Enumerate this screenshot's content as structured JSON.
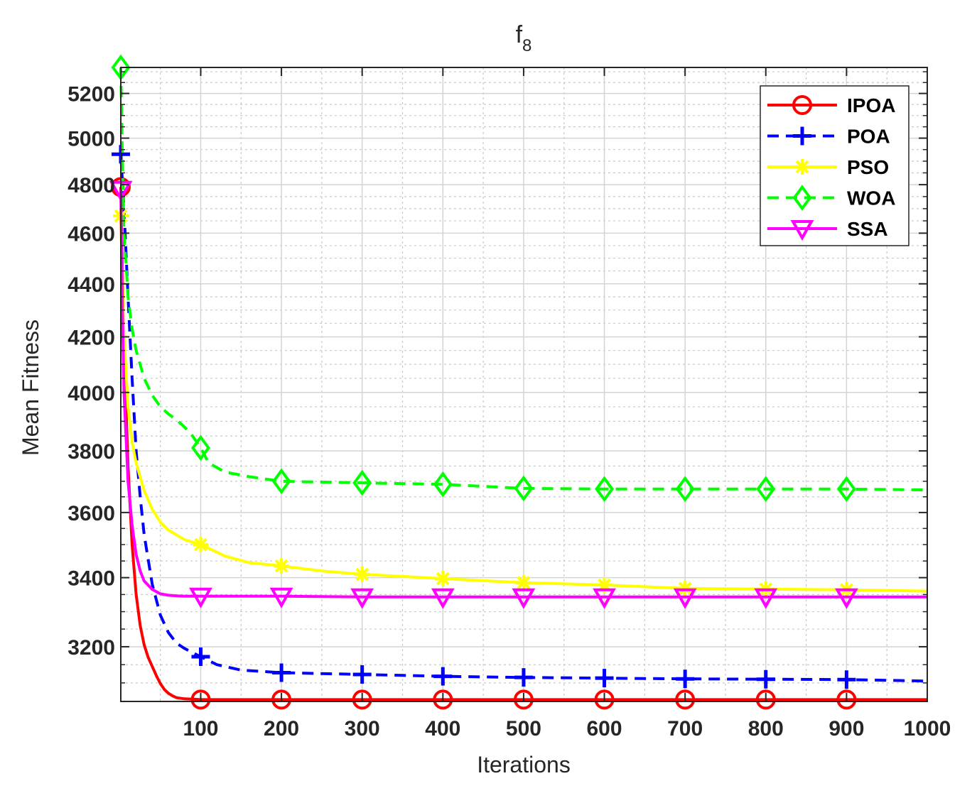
{
  "chart_data": {
    "type": "line",
    "title": "f",
    "title_subscript": "8",
    "xlabel": "Iterations",
    "ylabel": "Mean Fitness",
    "xlim": [
      1,
      1000
    ],
    "ylim": [
      3050,
      5320
    ],
    "yscale": "log",
    "grid": true,
    "legend_position": "top-right",
    "xticks": [
      100,
      200,
      300,
      400,
      500,
      600,
      700,
      800,
      900,
      1000
    ],
    "xtick_labels": [
      "100",
      "200",
      "300",
      "400",
      "500",
      "600",
      "700",
      "800",
      "900",
      "1000"
    ],
    "yticks": [
      3200,
      3400,
      3600,
      3800,
      4000,
      4200,
      4400,
      4600,
      4800,
      5000,
      5200
    ],
    "ytick_labels": [
      "3200",
      "3400",
      "3600",
      "3800",
      "4000",
      "4200",
      "4400",
      "4600",
      "4800",
      "5000",
      "5200"
    ],
    "series": [
      {
        "name": "IPOA",
        "color": "#FF0000",
        "dash": "solid",
        "marker": "circle",
        "x": [
          1,
          5,
          10,
          15,
          20,
          25,
          30,
          35,
          40,
          45,
          50,
          55,
          60,
          65,
          70,
          80,
          90,
          100,
          200,
          300,
          400,
          500,
          600,
          700,
          800,
          900,
          1000
        ],
        "y": [
          4790,
          4150,
          3750,
          3500,
          3350,
          3260,
          3205,
          3170,
          3145,
          3120,
          3098,
          3082,
          3072,
          3065,
          3060,
          3057,
          3056,
          3055,
          3055,
          3055,
          3055,
          3055,
          3055,
          3055,
          3055,
          3055,
          3055
        ]
      },
      {
        "name": "POA",
        "color": "#0000FF",
        "dash": "dashed",
        "marker": "plus",
        "x": [
          1,
          5,
          10,
          15,
          20,
          25,
          30,
          40,
          50,
          60,
          70,
          80,
          100,
          120,
          150,
          200,
          300,
          400,
          500,
          600,
          700,
          800,
          900,
          1000
        ],
        "y": [
          4930,
          4700,
          4350,
          4050,
          3800,
          3650,
          3530,
          3380,
          3290,
          3240,
          3210,
          3195,
          3172,
          3150,
          3135,
          3128,
          3123,
          3118,
          3115,
          3113,
          3111,
          3110,
          3109,
          3105
        ]
      },
      {
        "name": "PSO",
        "color": "#FFFF00",
        "dash": "solid",
        "marker": "asterisk",
        "x": [
          1,
          3,
          5,
          10,
          15,
          20,
          30,
          40,
          50,
          60,
          70,
          80,
          100,
          130,
          160,
          200,
          250,
          300,
          400,
          500,
          600,
          700,
          800,
          900,
          1000
        ],
        "y": [
          4670,
          4400,
          4200,
          3950,
          3830,
          3760,
          3670,
          3610,
          3570,
          3545,
          3530,
          3515,
          3500,
          3465,
          3445,
          3435,
          3420,
          3410,
          3397,
          3385,
          3378,
          3368,
          3366,
          3364,
          3360
        ]
      },
      {
        "name": "WOA",
        "color": "#00FF00",
        "dash": "dashed",
        "marker": "diamond",
        "x": [
          1,
          3,
          5,
          8,
          10,
          15,
          20,
          30,
          40,
          50,
          60,
          70,
          80,
          90,
          100,
          110,
          130,
          160,
          200,
          300,
          400,
          500,
          600,
          700,
          800,
          900,
          1000
        ],
        "y": [
          5320,
          4900,
          4600,
          4450,
          4350,
          4230,
          4150,
          4050,
          3990,
          3950,
          3925,
          3905,
          3880,
          3850,
          3810,
          3760,
          3730,
          3715,
          3700,
          3695,
          3690,
          3677,
          3675,
          3675,
          3675,
          3675,
          3672
        ]
      },
      {
        "name": "SSA",
        "color": "#FF00FF",
        "dash": "solid",
        "marker": "triangle-down",
        "x": [
          1,
          3,
          5,
          10,
          15,
          20,
          25,
          30,
          40,
          50,
          60,
          70,
          80,
          100,
          200,
          300,
          400,
          500,
          600,
          700,
          800,
          900,
          1000
        ],
        "y": [
          4780,
          4300,
          4000,
          3700,
          3560,
          3470,
          3420,
          3390,
          3365,
          3352,
          3348,
          3346,
          3345,
          3345,
          3345,
          3343,
          3343,
          3343,
          3343,
          3343,
          3343,
          3343,
          3343
        ]
      }
    ],
    "marker_indices": [
      0,
      100,
      200,
      300,
      400,
      500,
      600,
      700,
      800,
      900
    ]
  }
}
